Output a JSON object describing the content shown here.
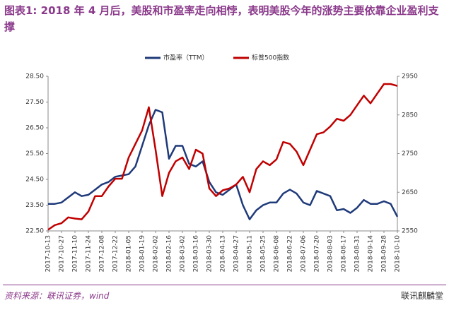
{
  "title": "图表1:  2018 年 4 月后，美股和市盈率走向相悖，表明美股今年的涨势主要依靠企业盈利支撑",
  "source": "资料来源：联讯证券，wind",
  "watermark": "联讯麒麟堂",
  "chart_data": {
    "type": "line",
    "categories": [
      "2017-10-13",
      null,
      "2017-10-27",
      null,
      "2017-11-10",
      null,
      "2017-11-24",
      null,
      "2017-12-08",
      null,
      "2017-12-22",
      null,
      "2018-01-05",
      null,
      "2018-01-19",
      null,
      "2018-02-02",
      null,
      "2018-02-16",
      null,
      "2018-03-02",
      null,
      "2018-03-16",
      null,
      "2018-03-30",
      null,
      "2018-04-13",
      null,
      "2018-04-27",
      null,
      "2018-05-11",
      null,
      "2018-05-25",
      null,
      "2018-06-08",
      null,
      "2018-06-22",
      null,
      "2018-07-06",
      null,
      "2018-07-20",
      null,
      "2018-08-03",
      null,
      "2018-08-17",
      null,
      "2018-08-31",
      null,
      "2018-09-14",
      null,
      "2018-09-28",
      null,
      "2018-10-10"
    ],
    "series": [
      {
        "name": "市盈率（TTM）",
        "color": "#1f3a7a",
        "values": [
          23.55,
          23.55,
          23.6,
          23.8,
          24.0,
          23.85,
          23.9,
          24.1,
          24.3,
          24.4,
          24.6,
          24.65,
          24.7,
          25.0,
          25.8,
          26.6,
          27.2,
          27.1,
          25.3,
          25.8,
          25.8,
          25.1,
          25.0,
          25.2,
          24.4,
          24.0,
          23.9,
          24.1,
          24.3,
          23.5,
          22.95,
          23.3,
          23.5,
          23.6,
          23.6,
          23.95,
          24.1,
          23.95,
          23.6,
          23.5,
          24.05,
          23.95,
          23.85,
          23.3,
          23.35,
          23.2,
          23.4,
          23.7,
          23.55,
          23.55,
          23.65,
          23.55,
          23.05
        ]
      },
      {
        "name": "标普500指数",
        "color": "#c00000",
        "axis": "y2",
        "values": [
          2553,
          2565,
          2570,
          2585,
          2582,
          2580,
          2600,
          2640,
          2640,
          2665,
          2685,
          2685,
          2740,
          2775,
          2810,
          2870,
          2760,
          2640,
          2700,
          2730,
          2740,
          2710,
          2760,
          2750,
          2660,
          2640,
          2655,
          2660,
          2670,
          2690,
          2650,
          2710,
          2730,
          2720,
          2735,
          2780,
          2775,
          2755,
          2720,
          2760,
          2800,
          2805,
          2820,
          2840,
          2835,
          2850,
          2875,
          2900,
          2880,
          2905,
          2930,
          2930,
          2925
        ]
      }
    ],
    "ylim": [
      22.5,
      28.5
    ],
    "yticks": [
      {
        "value": 22.5,
        "label": "22.50"
      },
      {
        "value": 23.5,
        "label": "23.50"
      },
      {
        "value": 24.5,
        "label": "24.50"
      },
      {
        "value": 25.5,
        "label": "25.50"
      },
      {
        "value": 26.5,
        "label": "26.50"
      },
      {
        "value": 27.5,
        "label": "27.50"
      },
      {
        "value": 28.5,
        "label": "28.50"
      }
    ],
    "y2lim": [
      2550,
      2950
    ],
    "y2ticks": [
      2550,
      2650,
      2750,
      2850,
      2950
    ],
    "legend": "top"
  }
}
